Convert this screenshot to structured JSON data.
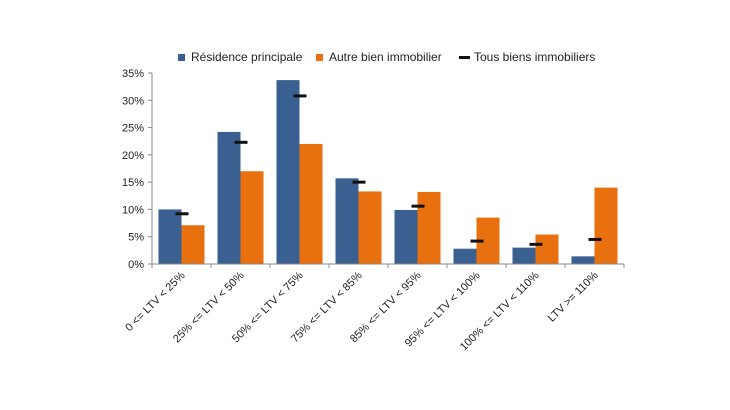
{
  "chart_data": {
    "type": "bar",
    "title": "",
    "xlabel": "",
    "ylabel": "",
    "ylim": [
      0,
      35
    ],
    "yticks": [
      "0%",
      "5%",
      "10%",
      "15%",
      "20%",
      "25%",
      "30%",
      "35%"
    ],
    "legend_position": "top",
    "grid": false,
    "categories": [
      "0 <= LTV < 25%",
      "25% <= LTV < 50%",
      "50% <= LTV < 75%",
      "75% <= LTV < 85%",
      "85% <= LTV < 95%",
      "95% <= LTV < 100%",
      "100% <= LTV < 110%",
      "LTV >= 110%"
    ],
    "series": [
      {
        "name": "Résidence principale",
        "kind": "bar",
        "color": "#3a5f91",
        "values": [
          10.0,
          24.2,
          33.7,
          15.7,
          9.9,
          2.8,
          3.0,
          1.4
        ]
      },
      {
        "name": "Autre bien immobilier",
        "kind": "bar",
        "color": "#e8700f",
        "values": [
          7.1,
          17.0,
          22.0,
          13.3,
          13.2,
          8.5,
          5.4,
          14.0
        ]
      },
      {
        "name": "Tous biens immobiliers",
        "kind": "marker",
        "color": "#111111",
        "values": [
          9.2,
          22.3,
          30.8,
          15.0,
          10.6,
          4.2,
          3.6,
          4.5
        ]
      }
    ]
  }
}
